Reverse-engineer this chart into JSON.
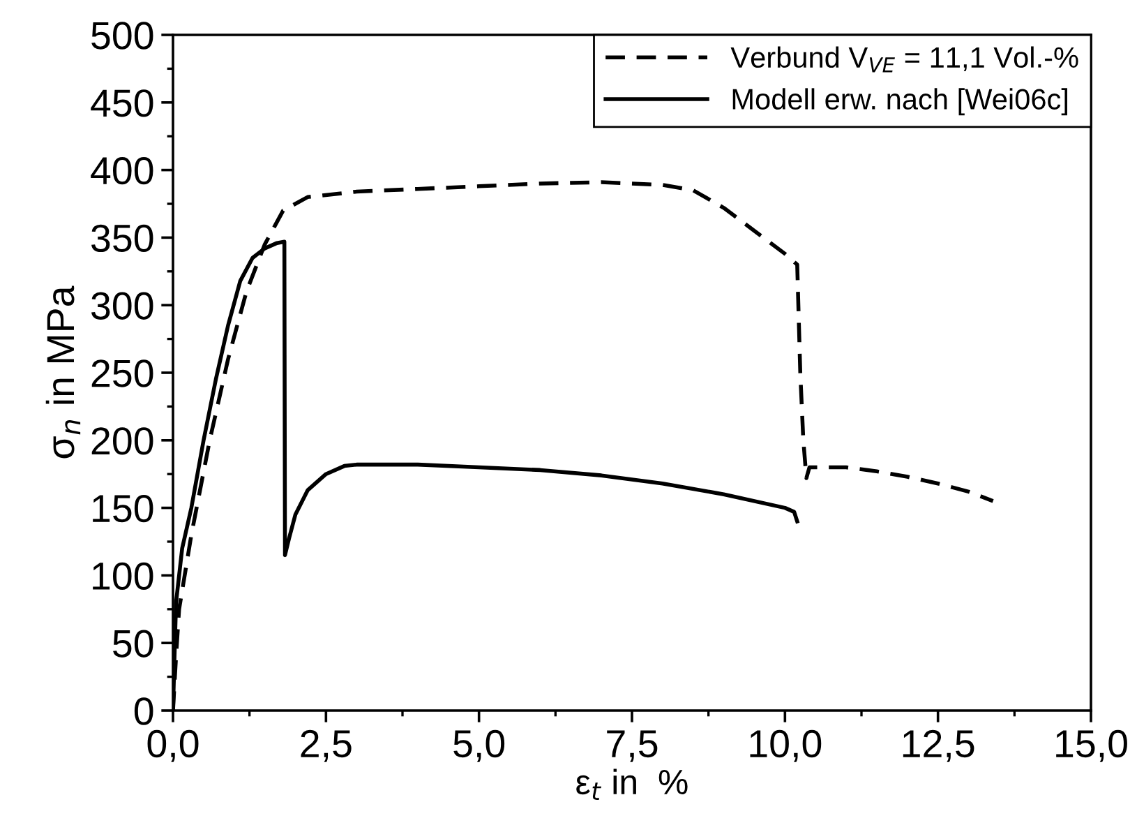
{
  "chart_data": {
    "type": "line",
    "xlabel": "ε$_{t}$ in  %",
    "ylabel": "σ$_{n}$ in MPa",
    "xlim": [
      0,
      15
    ],
    "ylim": [
      0,
      500
    ],
    "xticks": [
      {
        "value": 0,
        "label": "0,0"
      },
      {
        "value": 2.5,
        "label": "2,5"
      },
      {
        "value": 5,
        "label": "5,0"
      },
      {
        "value": 7.5,
        "label": "7,5"
      },
      {
        "value": 10,
        "label": "10,0"
      },
      {
        "value": 12.5,
        "label": "12,5"
      },
      {
        "value": 15,
        "label": "15,0"
      }
    ],
    "yticks": [
      0,
      50,
      100,
      150,
      200,
      250,
      300,
      350,
      400,
      450,
      500
    ],
    "grid": false,
    "legend": "top right",
    "marker": "none",
    "series": [
      {
        "name": "Verbund V$_{VE}$ = 11,1 Vol.-%",
        "color": "#000000",
        "line_style": "dashed",
        "x": [
          0,
          0.05,
          0.1,
          0.3,
          0.6,
          0.9,
          1.2,
          1.5,
          1.8,
          2.2,
          3,
          4,
          5,
          6,
          7,
          8,
          8.5,
          9,
          9.5,
          10,
          10.2,
          10.25,
          10.3,
          10.35,
          10.4,
          11,
          11.5,
          12,
          12.5,
          13,
          13.4
        ],
        "values": [
          0,
          40,
          75,
          130,
          200,
          260,
          310,
          345,
          370,
          380,
          384,
          386,
          388,
          390,
          391,
          389,
          385,
          372,
          355,
          338,
          330,
          250,
          200,
          172,
          180,
          180,
          177,
          173,
          168,
          162,
          155
        ]
      },
      {
        "name": "Modell erw. nach [Wei06c]",
        "color": "#000000",
        "line_style": "solid",
        "x": [
          0,
          0.05,
          0.15,
          0.3,
          0.5,
          0.7,
          0.9,
          1.1,
          1.3,
          1.5,
          1.7,
          1.82,
          1.83,
          1.9,
          2.0,
          2.2,
          2.5,
          2.8,
          3,
          4,
          5,
          6,
          7,
          8,
          9,
          10,
          10.15,
          10.2
        ],
        "values": [
          0,
          80,
          120,
          150,
          200,
          245,
          285,
          318,
          335,
          342,
          346,
          347,
          115,
          128,
          145,
          163,
          175,
          181,
          182,
          182,
          180,
          178,
          174,
          168,
          160,
          150,
          147,
          140
        ]
      }
    ]
  }
}
